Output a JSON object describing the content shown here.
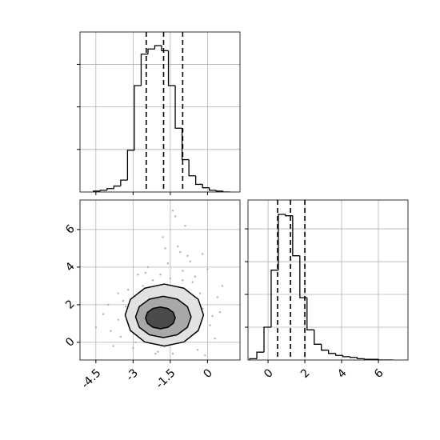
{
  "chart_data": [
    {
      "type": "histogram",
      "bins": [
        -4.6,
        -4.325,
        -4.05,
        -3.775,
        -3.5,
        -3.225,
        -2.95,
        -2.675,
        -2.4,
        -2.125,
        -1.85,
        -1.575,
        -1.3,
        -1.025,
        -0.75,
        -0.475,
        -0.2,
        0.075,
        0.35,
        0.625,
        0.9
      ],
      "counts": [
        1,
        2,
        4,
        7,
        14,
        49,
        125,
        162,
        168,
        172,
        166,
        125,
        75,
        38,
        19,
        9,
        5,
        2,
        1,
        0
      ],
      "color": "#000000",
      "quantiles": [
        -2.47,
        -1.77,
        -1.0
      ],
      "xlim": [
        -5.14,
        1.31
      ],
      "xticks": [
        -4.5,
        -3.0,
        -1.5,
        0.0
      ],
      "x_tick_labels": false,
      "ylim": [
        0,
        188
      ],
      "yticks": [
        50,
        100,
        150
      ],
      "y_tick_labels": false,
      "grid": true
    },
    {
      "type": "scatter",
      "x": [
        -3.6,
        -3.9,
        -4.2,
        -3.4,
        -3.8,
        -0.2,
        0.1,
        0.4,
        0.3,
        -0.5,
        -1.0,
        -1.6,
        -2.2,
        -2.6,
        -1.2,
        -0.8,
        -2.0,
        -1.4,
        -3.0,
        -0.4,
        0.6,
        -4.5,
        -3.3,
        -2.8,
        -0.9,
        -1.8,
        -2.4,
        -0.1,
        -3.6,
        -1.1,
        0.2,
        -2.9,
        -1.5,
        -0.6,
        -3.2,
        -2.1,
        -1.3,
        0.0,
        -4.0,
        -0.3,
        -1.9,
        -2.5,
        -0.7,
        -1.7,
        -2.7,
        -1.0,
        -0.2,
        -3.5,
        0.5,
        -1.4
      ],
      "y": [
        1.2,
        0.6,
        1.5,
        2.2,
        -0.2,
        1.8,
        0.9,
        2.4,
        0.2,
        3.5,
        3.8,
        4.2,
        3.3,
        3.0,
        5.1,
        4.6,
        -0.5,
        -0.6,
        -0.3,
        -0.4,
        3.0,
        0.8,
        1.9,
        3.6,
        6.2,
        5.6,
        4.0,
        -0.7,
        2.6,
        4.8,
        1.4,
        0.0,
        3.4,
        3.2,
        2.8,
        -0.6,
        6.7,
        3.9,
        2.0,
        2.6,
        3.6,
        3.7,
        4.3,
        5.0,
        2.4,
        3.3,
        4.7,
        0.3,
        1.6,
        7.0
      ],
      "color": "#b0b0b0",
      "contours": [
        {
          "fill": "#e2e2e2",
          "x": [
            -0.16,
            -0.37,
            -0.95,
            -1.74,
            -2.53,
            -3.11,
            -3.32,
            -3.11,
            -2.53,
            -1.74,
            -0.95,
            -0.37
          ],
          "y": [
            1.45,
            2.28,
            2.88,
            3.1,
            2.88,
            2.28,
            1.45,
            0.63,
            0.02,
            -0.2,
            0.02,
            0.63
          ]
        },
        {
          "fill": "#a8a8a8",
          "x": [
            -0.66,
            -0.81,
            -1.22,
            -1.78,
            -2.34,
            -2.75,
            -2.9,
            -2.75,
            -2.34,
            -1.78,
            -1.22,
            -0.81
          ],
          "y": [
            1.35,
            1.9,
            2.3,
            2.45,
            2.3,
            1.9,
            1.35,
            0.8,
            0.4,
            0.25,
            0.4,
            0.8
          ]
        },
        {
          "fill": "#4a4a4a",
          "x": [
            -1.3,
            -1.38,
            -1.6,
            -1.9,
            -2.2,
            -2.42,
            -2.5,
            -2.42,
            -2.2,
            -1.9,
            -1.6,
            -1.38
          ],
          "y": [
            1.3,
            1.59,
            1.8,
            1.88,
            1.8,
            1.59,
            1.3,
            1.01,
            0.8,
            0.72,
            0.8,
            1.01
          ]
        }
      ],
      "xlim": [
        -5.14,
        1.31
      ],
      "xticks": [
        -4.5,
        -3.0,
        -1.5,
        0.0
      ],
      "ylim": [
        -0.94,
        7.57
      ],
      "yticks": [
        0,
        2,
        4,
        6
      ],
      "grid": true
    },
    {
      "type": "histogram",
      "bins": [
        -1.0,
        -0.61,
        -0.22,
        0.17,
        0.56,
        0.95,
        1.34,
        1.73,
        2.12,
        2.51,
        2.9,
        3.29,
        3.68,
        4.07,
        4.46,
        4.85,
        5.24,
        5.63,
        6.02,
        6.41,
        6.8
      ],
      "counts": [
        2,
        12,
        50,
        137,
        222,
        220,
        159,
        95,
        46,
        24,
        15,
        10,
        7,
        5,
        4,
        2,
        1,
        1,
        0,
        0
      ],
      "color": "#000000",
      "quantiles": [
        0.52,
        1.22,
        2.0
      ],
      "xlim": [
        -1.09,
        7.61
      ],
      "xticks": [
        0,
        2,
        4,
        6
      ],
      "ylim": [
        0,
        244
      ],
      "yticks": [
        50,
        100,
        150,
        200
      ],
      "y_tick_labels": false,
      "grid": true
    }
  ]
}
